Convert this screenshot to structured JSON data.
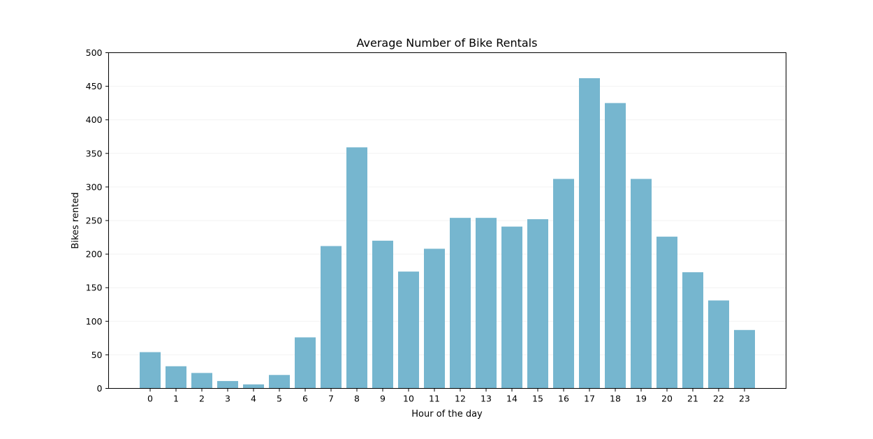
{
  "chart_data": {
    "type": "bar",
    "title": "Average Number of Bike Rentals",
    "xlabel": "Hour of the day",
    "ylabel": "Bikes rented",
    "categories": [
      "0",
      "1",
      "2",
      "3",
      "4",
      "5",
      "6",
      "7",
      "8",
      "9",
      "10",
      "11",
      "12",
      "13",
      "14",
      "15",
      "16",
      "17",
      "18",
      "19",
      "20",
      "21",
      "22",
      "23"
    ],
    "values": [
      54,
      33,
      23,
      11,
      6,
      20,
      76,
      212,
      359,
      220,
      174,
      208,
      254,
      254,
      241,
      252,
      312,
      462,
      425,
      312,
      226,
      173,
      131,
      87
    ],
    "ylim": [
      0,
      500
    ],
    "yticks": [
      0,
      50,
      100,
      150,
      200,
      250,
      300,
      350,
      400,
      450,
      500
    ],
    "grid": "horizontal, faint",
    "legend": "none",
    "bar_color": "#76b6cf",
    "grid_color": "#f2f2f2"
  }
}
